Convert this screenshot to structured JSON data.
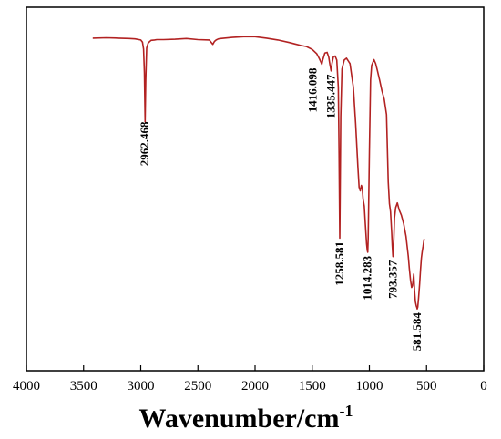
{
  "chart_data": {
    "type": "line",
    "title": "",
    "xlabel": "Wavenumber/cm",
    "xlabel_superscript": "-1",
    "ylabel": "",
    "xlim": [
      4000,
      0
    ],
    "x_ticks": [
      4000,
      3500,
      3000,
      2500,
      2000,
      1500,
      1000,
      500,
      0
    ],
    "x_tick_labels": [
      "4000",
      "3500",
      "3000",
      "2500",
      "2000",
      "1500",
      "1000",
      "500",
      "0"
    ],
    "ylim": [
      0,
      100
    ],
    "grid": false,
    "line_color": "#b22222",
    "series": [
      {
        "x": [
          3420,
          3300,
          3200,
          3100,
          3050,
          3000,
          2985,
          2975,
          2968,
          2962,
          2956,
          2948,
          2935,
          2910,
          2880,
          2860,
          2800,
          2700,
          2600,
          2500,
          2400,
          2370,
          2355,
          2340,
          2320,
          2300,
          2200,
          2100,
          2000,
          1900,
          1800,
          1700,
          1650,
          1600,
          1550,
          1500,
          1460,
          1440,
          1425,
          1416,
          1408,
          1390,
          1370,
          1355,
          1345,
          1335,
          1327,
          1315,
          1300,
          1285,
          1272,
          1265,
          1261,
          1258.6,
          1256,
          1250,
          1240,
          1220,
          1200,
          1170,
          1140,
          1120,
          1100,
          1090,
          1080,
          1070,
          1062,
          1055,
          1045,
          1035,
          1025,
          1018,
          1014.3,
          1010,
          1000,
          990,
          980,
          960,
          945,
          930,
          910,
          890,
          870,
          850,
          835,
          825,
          815,
          805,
          800,
          795,
          793.4,
          790,
          780,
          770,
          755,
          740,
          720,
          700,
          680,
          660,
          650,
          640,
          630,
          622,
          612,
          605,
          598,
          590,
          585,
          581.6,
          577,
          570,
          560,
          552,
          545,
          538,
          530,
          525,
          520
        ],
        "y": [
          91.5,
          91.6,
          91.5,
          91.4,
          91.3,
          91.0,
          90.4,
          88.5,
          82,
          68.5,
          80,
          88.8,
          90.2,
          90.9,
          91.0,
          91.1,
          91.1,
          91.2,
          91.4,
          91.1,
          91.0,
          89.8,
          90.6,
          91.0,
          91.3,
          91.4,
          91.7,
          91.9,
          91.9,
          91.5,
          91.0,
          90.3,
          89.9,
          89.5,
          89.2,
          88.4,
          87.2,
          86.0,
          85.0,
          84.3,
          85.5,
          87.4,
          87.6,
          86.3,
          84.2,
          82.5,
          84.6,
          86.4,
          86.6,
          85.5,
          78,
          60,
          45,
          36.5,
          48,
          70,
          83,
          85.5,
          86.0,
          84.5,
          78,
          68,
          56,
          50.5,
          49.5,
          51.0,
          50.2,
          47.2,
          45.3,
          40.2,
          35.0,
          33.1,
          32.6,
          36.5,
          60,
          80,
          84.0,
          85.6,
          84.5,
          82.6,
          79.9,
          77.0,
          74.7,
          70.5,
          52,
          46.0,
          43.8,
          38.0,
          34.5,
          32.0,
          31.4,
          33.0,
          42.1,
          44.9,
          46.2,
          44.3,
          42.8,
          40.5,
          37.0,
          31.5,
          28.0,
          24.8,
          22.9,
          23.4,
          26.6,
          22.0,
          19.0,
          17.8,
          17.4,
          17.0,
          17.5,
          20.0,
          24.0,
          28.0,
          31.0,
          32.8,
          34.3,
          35.4,
          36.3
        ]
      }
    ],
    "annotations": [
      {
        "x": 2962.468,
        "label": "2962.468"
      },
      {
        "x": 1416.098,
        "label": "1416.098"
      },
      {
        "x": 1335.447,
        "label": "1335.447"
      },
      {
        "x": 1258.581,
        "label": "1258.581"
      },
      {
        "x": 1014.283,
        "label": "1014.283"
      },
      {
        "x": 793.357,
        "label": "793.357"
      },
      {
        "x": 581.584,
        "label": "581.584"
      }
    ]
  }
}
